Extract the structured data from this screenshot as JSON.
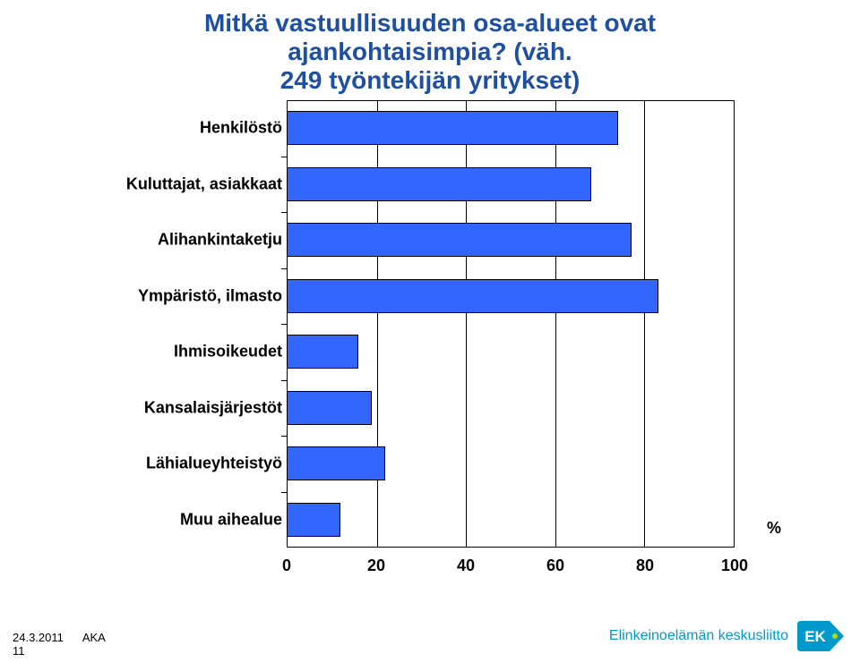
{
  "title": {
    "line1": "Mitkä vastuullisuuden osa-alueet ovat",
    "line2": "ajankohtaisimpia? (väh.",
    "line3": "249 työntekijän yritykset)",
    "color": "#1f4fa1",
    "fontsize": 28,
    "fontweight": "bold"
  },
  "chart": {
    "type": "bar",
    "orientation": "horizontal",
    "categories": [
      "Henkilöstö",
      "Kuluttajat, asiakkaat",
      "Alihankintaketju",
      "Ympäristö, ilmasto",
      "Ihmisoikeudet",
      "Kansalaisjärjestöt",
      "Lähialueyhteistyö",
      "Muu aihealue"
    ],
    "values": [
      74,
      68,
      77,
      83,
      16,
      19,
      22,
      12
    ],
    "bar_color": "#3366ff",
    "bar_border_color": "#000000",
    "xlim": [
      0,
      100
    ],
    "xtick_step": 20,
    "grid_color": "#000000",
    "background_color": "#ffffff",
    "label_fontsize": 18,
    "label_fontweight": "bold",
    "tick_fontsize": 18,
    "tick_fontweight": "bold",
    "x_unit": "%"
  },
  "xlabels": [
    "0",
    "20",
    "40",
    "60",
    "80",
    "100"
  ],
  "footer": {
    "date": "24.3.2011",
    "code": "AKA",
    "page": "11",
    "brand": "Elinkeinoelämän keskusliitto",
    "brand_color": "#0099cc",
    "brand_fontsize": 16,
    "badge_bg": "#0099cc",
    "badge_text": "EK",
    "badge_text_color": "#ffffff"
  }
}
